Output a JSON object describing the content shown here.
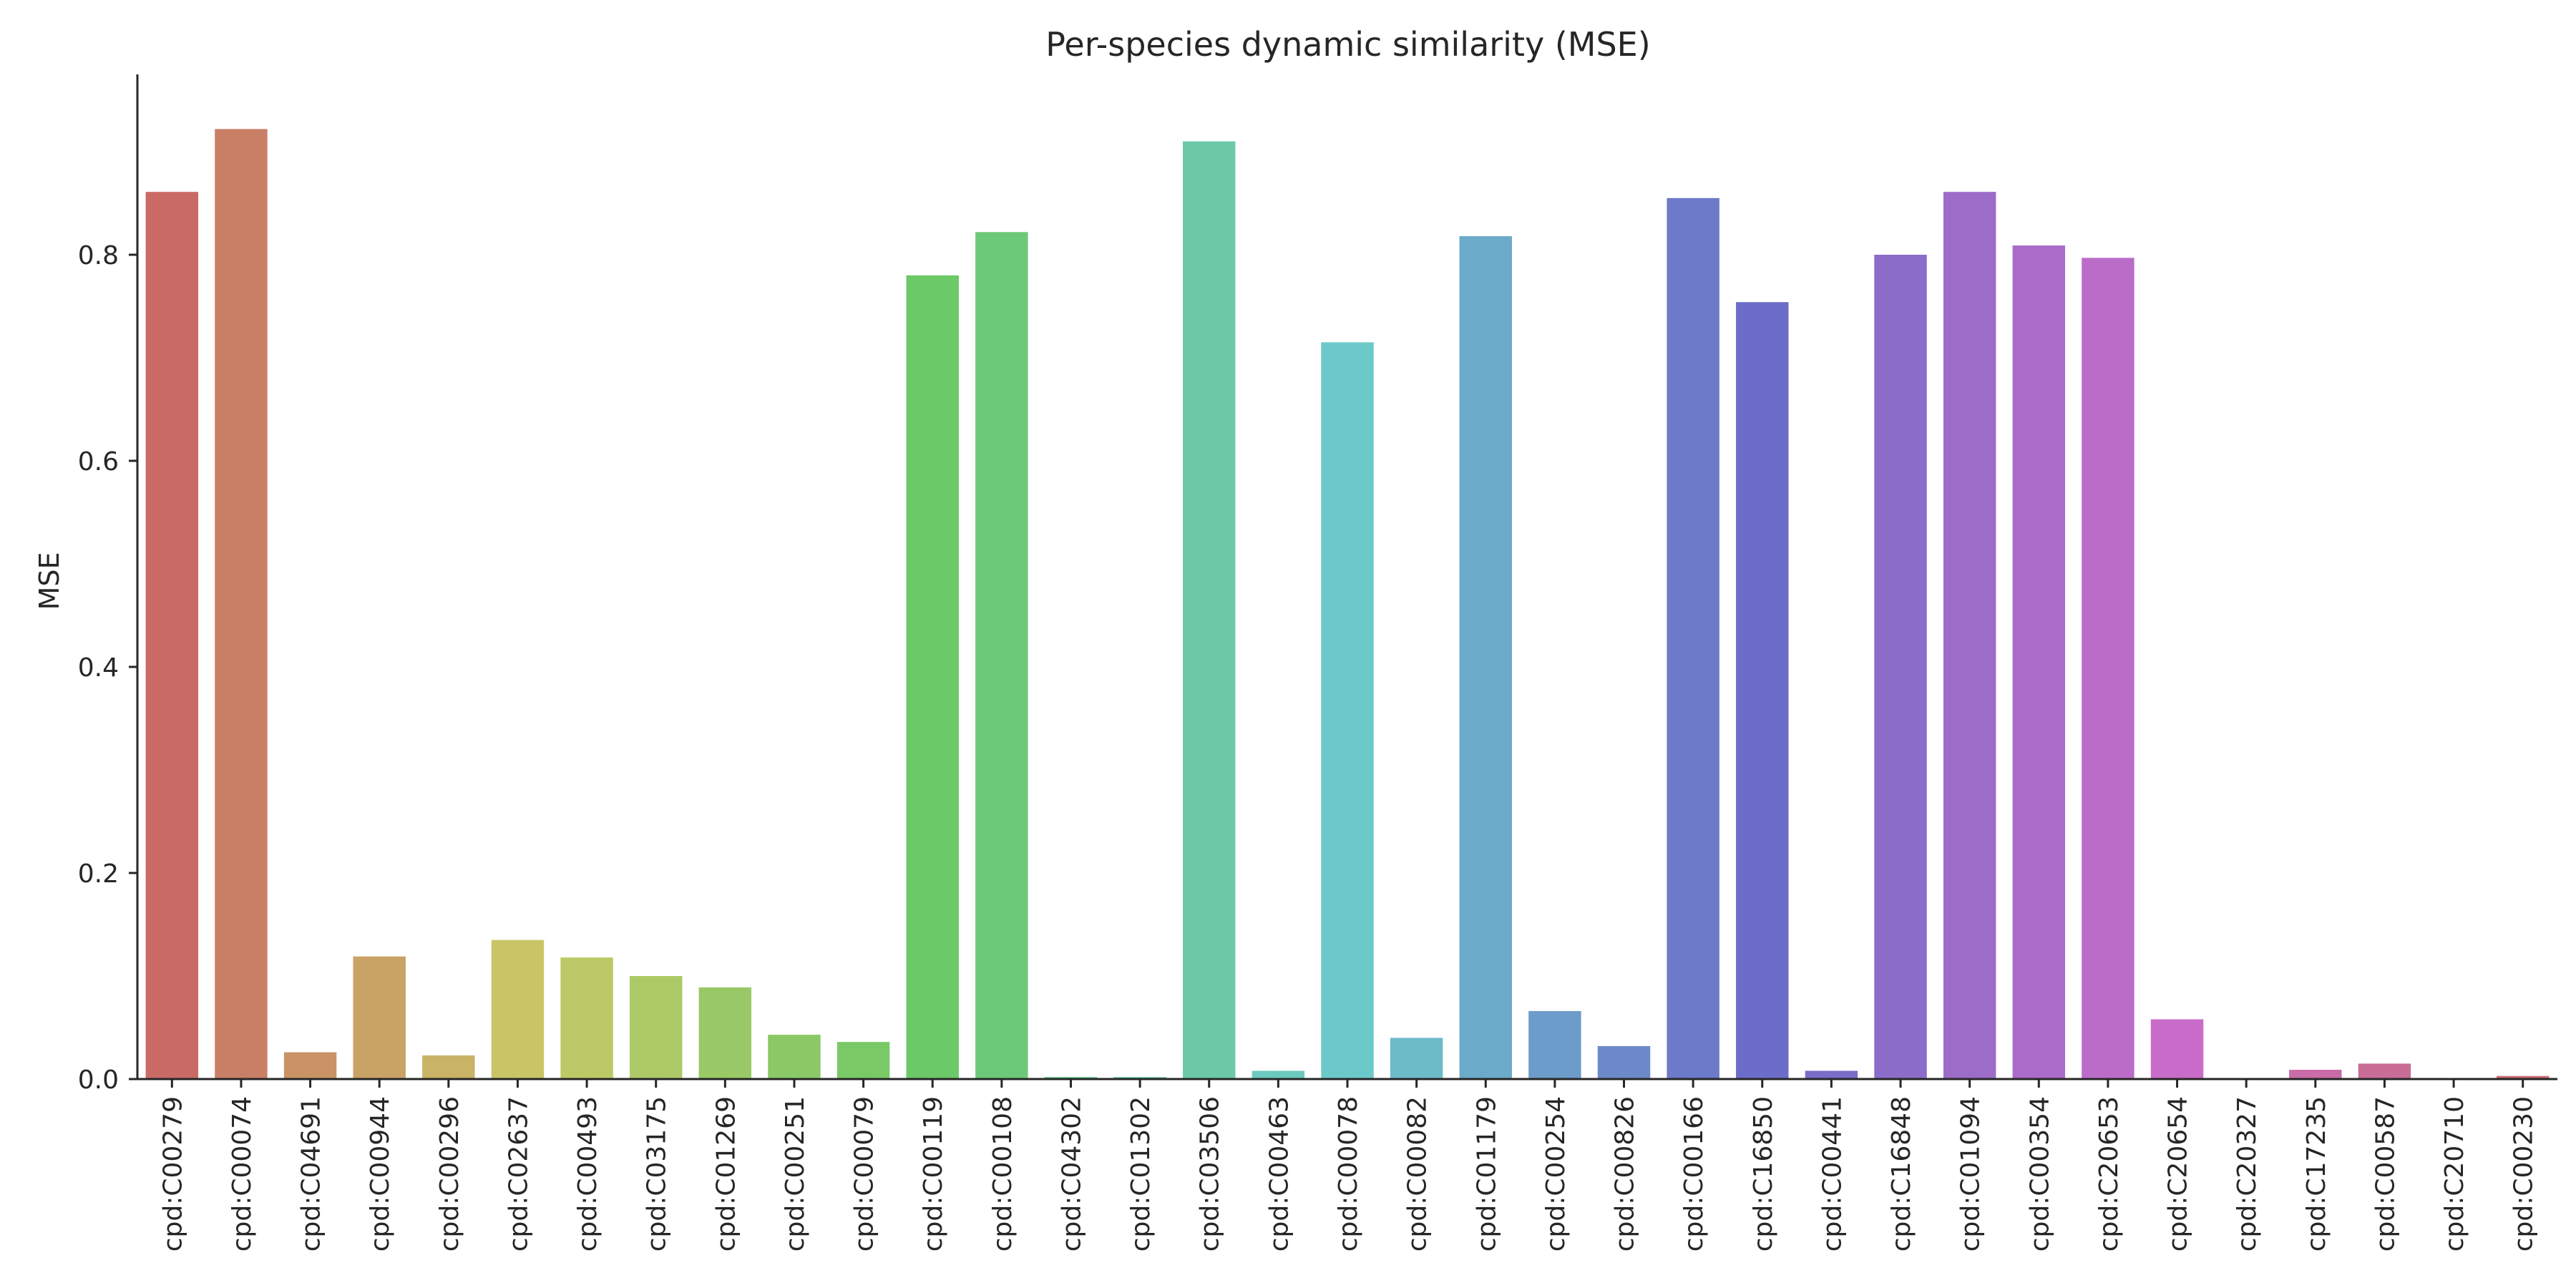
{
  "chart_data": {
    "type": "bar",
    "title": "Per-species dynamic similarity (MSE)",
    "xlabel": "",
    "ylabel": "MSE",
    "ylim": [
      0,
      0.975
    ],
    "yticks": [
      "0.0",
      "0.2",
      "0.4",
      "0.6",
      "0.8"
    ],
    "grid": false,
    "categories": [
      "cpd:C00279",
      "cpd:C00074",
      "cpd:C04691",
      "cpd:C00944",
      "cpd:C00296",
      "cpd:C02637",
      "cpd:C00493",
      "cpd:C03175",
      "cpd:C01269",
      "cpd:C00251",
      "cpd:C00079",
      "cpd:C00119",
      "cpd:C00108",
      "cpd:C04302",
      "cpd:C01302",
      "cpd:C03506",
      "cpd:C00463",
      "cpd:C00078",
      "cpd:C00082",
      "cpd:C01179",
      "cpd:C00254",
      "cpd:C00826",
      "cpd:C00166",
      "cpd:C16850",
      "cpd:C00441",
      "cpd:C16848",
      "cpd:C01094",
      "cpd:C00354",
      "cpd:C20653",
      "cpd:C20654",
      "cpd:C20327",
      "cpd:C17235",
      "cpd:C00587",
      "cpd:C20710",
      "cpd:C00230"
    ],
    "values": [
      0.861,
      0.922,
      0.026,
      0.119,
      0.023,
      0.135,
      0.118,
      0.1,
      0.089,
      0.043,
      0.036,
      0.78,
      0.822,
      0.002,
      0.002,
      0.91,
      0.008,
      0.715,
      0.04,
      0.818,
      0.066,
      0.032,
      0.855,
      0.754,
      0.008,
      0.8,
      0.861,
      0.809,
      0.797,
      0.058,
      0.001,
      0.009,
      0.015,
      0.001,
      0.003
    ],
    "colors": [
      "#c96a66",
      "#c97f66",
      "#c99366",
      "#c9a266",
      "#c9b366",
      "#c9c466",
      "#bdc966",
      "#adc966",
      "#99c966",
      "#8ac966",
      "#79c966",
      "#6cc967",
      "#6cc97a",
      "#6cc98c",
      "#6cc99f",
      "#6cc9a8",
      "#6cc9bd",
      "#6cc9c9",
      "#6cbbc9",
      "#6caac9",
      "#6c9cc9",
      "#6c8ac9",
      "#6c7ac9",
      "#6c6cc9",
      "#7a6cc9",
      "#8c6cc9",
      "#9c6cc9",
      "#ab6cc9",
      "#bb6cc9",
      "#c96cc9",
      "#c96cb8",
      "#c96ca8",
      "#c96c96",
      "#c96c86",
      "#c96c76"
    ]
  }
}
